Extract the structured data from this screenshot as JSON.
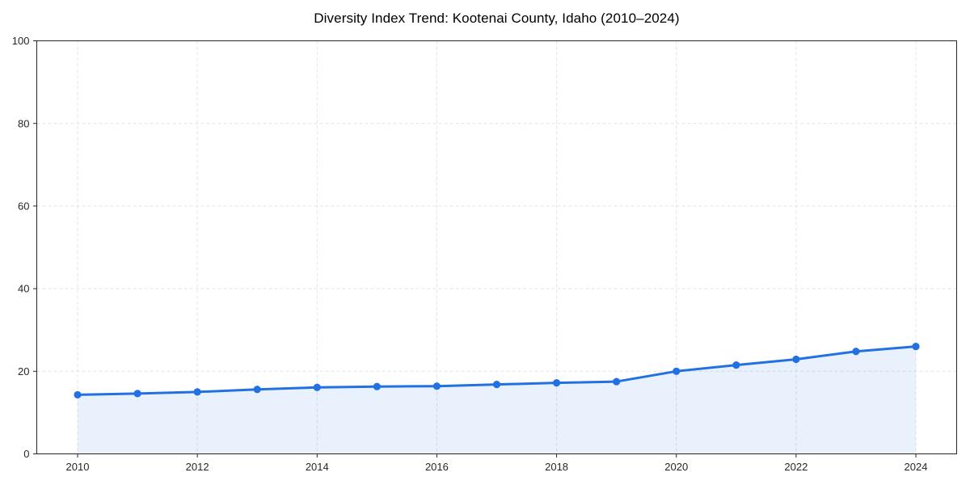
{
  "chart_data": {
    "type": "area",
    "title": "Diversity Index Trend: Kootenai County, Idaho (2010–2024)",
    "xlabel": "",
    "ylabel": "",
    "x": [
      2010,
      2011,
      2012,
      2013,
      2014,
      2015,
      2016,
      2017,
      2018,
      2019,
      2020,
      2021,
      2022,
      2023,
      2024
    ],
    "series": [
      {
        "name": "Diversity Index",
        "values": [
          14.3,
          14.6,
          15.0,
          15.6,
          16.1,
          16.3,
          16.4,
          16.8,
          17.2,
          17.5,
          20.0,
          21.5,
          22.9,
          24.8,
          26.0
        ]
      }
    ],
    "ylim": [
      0,
      100
    ],
    "yticks": [
      0,
      20,
      40,
      60,
      80,
      100
    ],
    "xticks": [
      2010,
      2012,
      2014,
      2016,
      2018,
      2020,
      2022,
      2024
    ],
    "grid": "dashed, both axes",
    "legend_position": "none",
    "colors": {
      "line": "#2271e3",
      "marker": "#2271e3",
      "fill": "rgba(34,113,227,0.10)",
      "grid": "#e4e4e4",
      "axis": "#262626",
      "tick_label": "#262626",
      "title": "#000000",
      "background": "#ffffff"
    }
  }
}
